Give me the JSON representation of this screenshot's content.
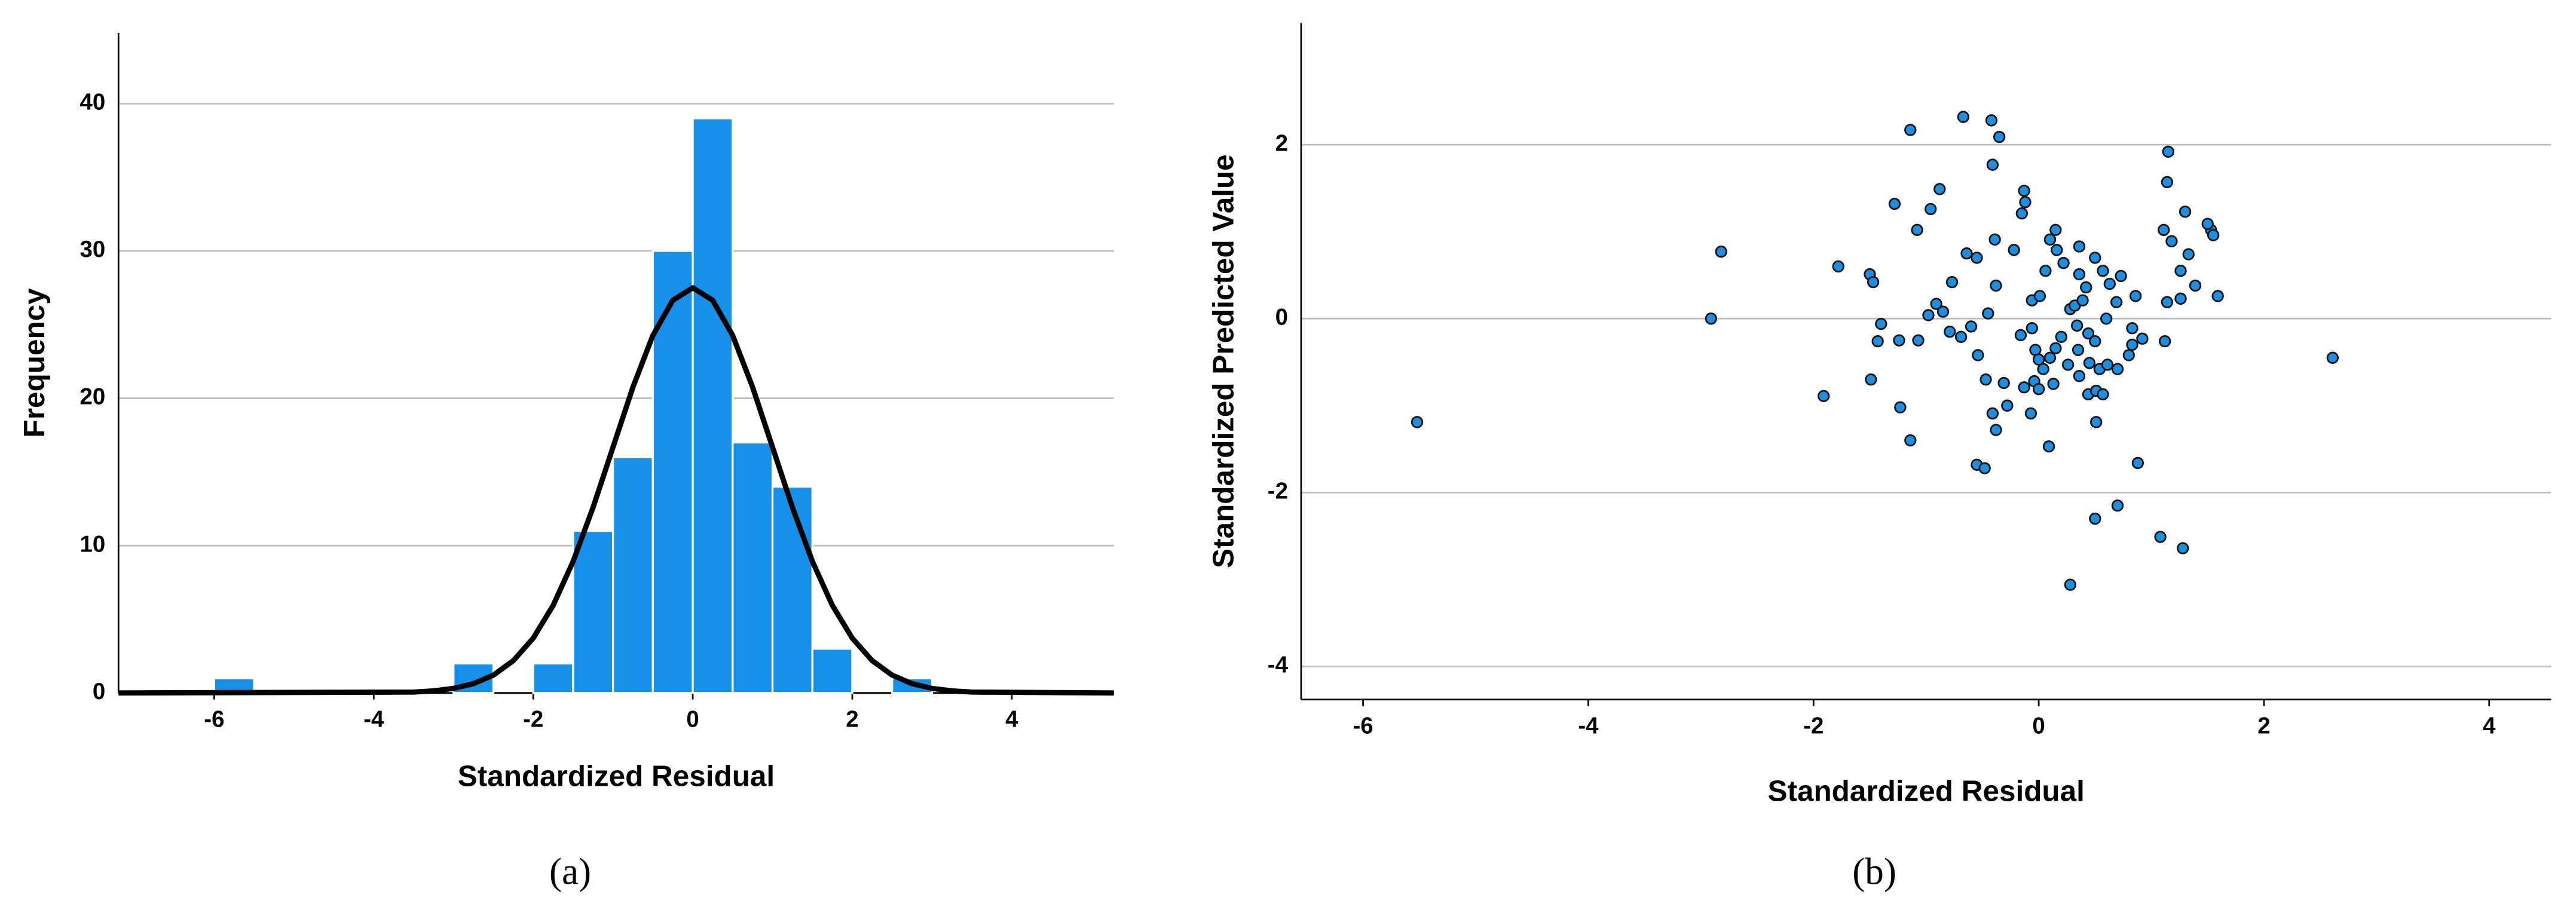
{
  "chart_data": [
    {
      "type": "histogram",
      "caption": "(a)",
      "xlabel": "Standardized Residual",
      "ylabel": "Frequency",
      "bins": [
        -6,
        -5.5,
        -5,
        -4.5,
        -4,
        -3.5,
        -3,
        -2.5,
        -2,
        -1.5,
        -1,
        -0.5,
        0,
        0.5,
        1,
        1.5,
        2,
        2.5,
        3
      ],
      "values": [
        1,
        0,
        0,
        0,
        0,
        0,
        2,
        0,
        2,
        11,
        16,
        30,
        39,
        17,
        14,
        3,
        0,
        1
      ],
      "color": "#1690e8",
      "curve": {
        "color": "#000000",
        "x": [
          -7.2,
          -3.5,
          -3.25,
          -3,
          -2.75,
          -2.5,
          -2.25,
          -2,
          -1.75,
          -1.5,
          -1.25,
          -1,
          -0.75,
          -0.5,
          -0.25,
          0,
          0.25,
          0.5,
          0.75,
          1,
          1.25,
          1.5,
          1.75,
          2,
          2.25,
          2.5,
          2.75,
          3,
          3.25,
          3.5,
          5.28
        ],
        "values": [
          0,
          0.06,
          0.14,
          0.31,
          0.63,
          1.21,
          2.19,
          3.72,
          5.95,
          8.93,
          12.59,
          16.68,
          20.76,
          24.27,
          26.65,
          27.5,
          26.65,
          24.27,
          20.76,
          16.68,
          12.59,
          8.93,
          5.95,
          3.72,
          2.19,
          1.21,
          0.63,
          0.31,
          0.14,
          0.06,
          0
        ]
      },
      "xlim": [
        -7.2,
        5.28
      ],
      "ylim": [
        0,
        44.8
      ],
      "xticks": [
        -6,
        -4,
        -2,
        0,
        2,
        4
      ],
      "yticks": [
        0,
        10,
        20,
        30,
        40
      ],
      "grid": true
    },
    {
      "type": "scatter",
      "caption": "(b)",
      "xlabel": "Standardized Residual",
      "ylabel": "Standardized Predicted Value",
      "color": "#1e8fe0",
      "x": [
        -5.52,
        -2.82,
        -2.91,
        -1.91,
        -1.78,
        -1.5,
        -1.47,
        -1.14,
        -0.67,
        -0.42,
        -0.35,
        -1.28,
        -1.08,
        -0.96,
        -0.88,
        -0.41,
        -0.13,
        -0.12,
        -0.15,
        -0.22,
        -0.39,
        -0.64,
        -0.55,
        -0.77,
        -0.91,
        -0.98,
        -0.85,
        -1.07,
        -1.43,
        -1.4,
        -1.24,
        -1.49,
        -1.23,
        -1.14,
        -0.79,
        -0.69,
        -0.6,
        -0.54,
        -0.45,
        -0.38,
        -0.47,
        -0.31,
        -0.28,
        -0.41,
        -0.38,
        -0.55,
        -0.48,
        -0.16,
        -0.06,
        -0.06,
        0.01,
        0.06,
        0.1,
        0.15,
        0.16,
        0.22,
        -0.03,
        0.0,
        0.04,
        -0.04,
        -0.13,
        0.0,
        -0.07,
        0.1,
        0.15,
        0.2,
        0.26,
        0.13,
        0.09,
        0.28,
        0.32,
        0.39,
        0.36,
        0.36,
        0.5,
        0.57,
        0.63,
        0.42,
        0.34,
        0.44,
        0.5,
        0.35,
        0.45,
        0.36,
        0.44,
        0.51,
        0.54,
        0.61,
        0.7,
        0.51,
        0.5,
        0.7,
        0.28,
        0.83,
        0.83,
        0.8,
        0.69,
        0.73,
        0.86,
        0.88,
        0.92,
        0.6,
        0.57,
        1.08,
        1.28,
        1.15,
        1.14,
        1.11,
        1.18,
        1.3,
        1.33,
        1.26,
        1.39,
        1.26,
        1.14,
        1.12,
        1.53,
        1.5,
        1.59,
        2.61,
        1.55
      ],
      "values": [
        -1.19,
        0.77,
        0.0,
        -0.89,
        0.6,
        0.51,
        0.42,
        2.17,
        2.32,
        2.28,
        2.09,
        1.32,
        1.02,
        1.26,
        1.49,
        1.77,
        1.47,
        1.34,
        1.21,
        0.79,
        0.91,
        0.75,
        0.7,
        0.42,
        0.17,
        0.04,
        0.08,
        -0.25,
        -0.26,
        -0.06,
        -0.25,
        -0.7,
        -1.02,
        -1.4,
        -0.15,
        -0.21,
        -0.09,
        -0.42,
        0.06,
        0.38,
        -0.7,
        -0.74,
        -1.0,
        -1.09,
        -1.28,
        -1.68,
        -1.72,
        -0.19,
        -0.11,
        0.21,
        0.26,
        0.55,
        0.91,
        1.02,
        0.79,
        0.64,
        -0.36,
        -0.47,
        -0.58,
        -0.72,
        -0.79,
        -0.81,
        -1.09,
        -0.45,
        -0.34,
        -0.21,
        -0.53,
        -0.75,
        -1.47,
        0.11,
        0.15,
        0.21,
        0.51,
        0.83,
        0.7,
        0.55,
        0.4,
        0.36,
        -0.08,
        -0.17,
        -0.26,
        -0.36,
        -0.51,
        -0.66,
        -0.87,
        -0.83,
        -0.58,
        -0.53,
        -0.58,
        -1.19,
        -2.3,
        -2.15,
        -3.06,
        -0.11,
        -0.3,
        -0.42,
        0.19,
        0.49,
        0.26,
        -1.66,
        -0.23,
        0.0,
        -0.87,
        -2.51,
        -2.64,
        1.92,
        1.57,
        1.02,
        0.89,
        1.23,
        0.74,
        0.55,
        0.38,
        0.23,
        0.19,
        -0.26,
        1.02,
        1.09,
        0.26,
        -0.45,
        0.96
      ],
      "xlim": [
        -6.55,
        4.55
      ],
      "ylim": [
        -4.38,
        3.4
      ],
      "xticks": [
        -6,
        -4,
        -2,
        0,
        2,
        4
      ],
      "yticks": [
        -4,
        -2,
        0,
        2
      ],
      "grid": true
    }
  ]
}
